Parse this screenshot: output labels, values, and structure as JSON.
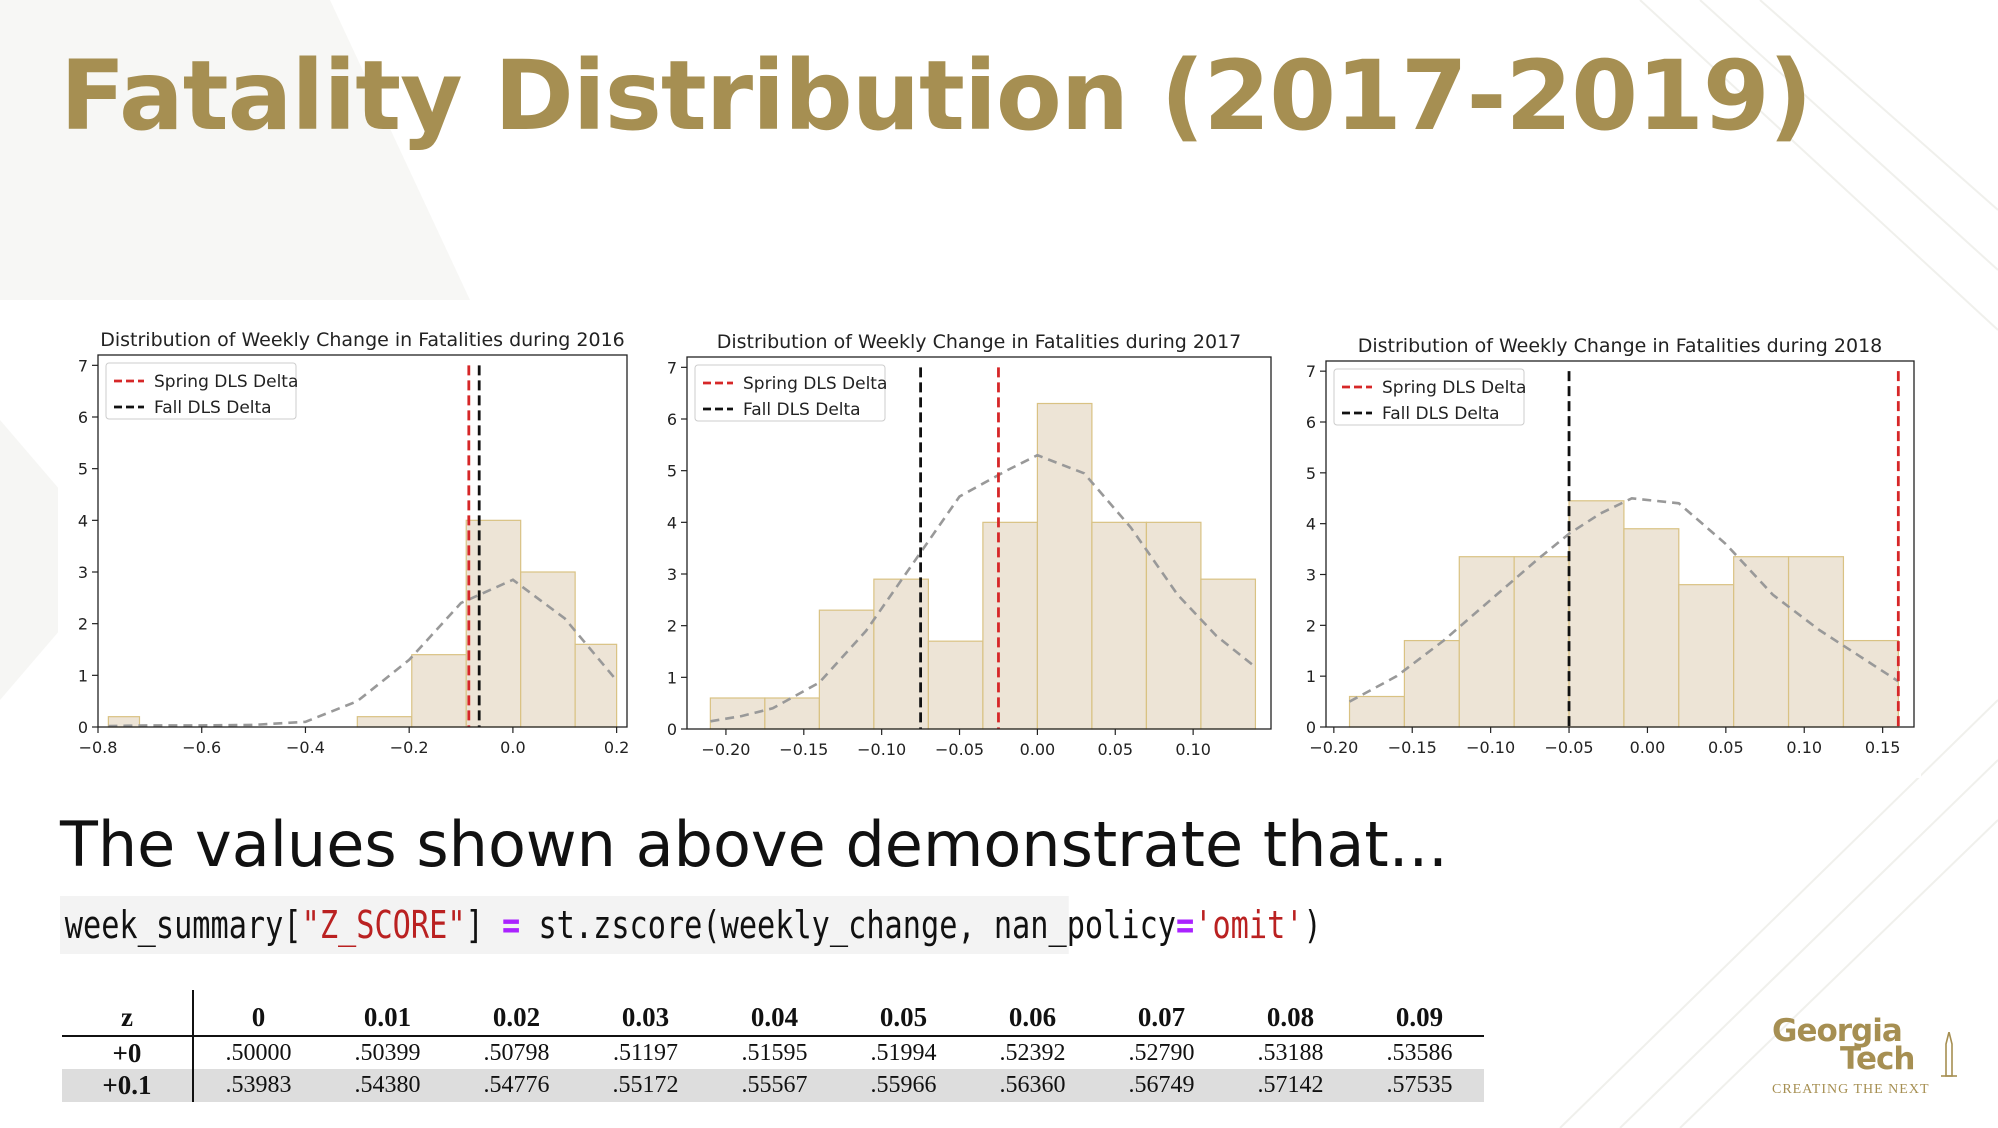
{
  "slide": {
    "title": "Fatality Distribution (2017-2019)",
    "body_text": "The values shown above demonstrate that...",
    "accent_color": "#a68f52"
  },
  "code": {
    "var": "week_summary",
    "br_open": "[",
    "key": "\"Z_SCORE\"",
    "br_close": "]",
    "eq": "=",
    "call": "st.zscore(weekly_change, nan_policy",
    "eq2": "=",
    "arg": "'omit'",
    "close": ")"
  },
  "chart_data": [
    {
      "type": "bar",
      "title": "Distribution of Weekly Change in Fatalities during 2016",
      "xlim": [
        -0.8,
        0.22
      ],
      "ylim": [
        0,
        7.2
      ],
      "xticks": [
        -0.8,
        -0.6,
        -0.4,
        -0.2,
        0.0,
        0.2
      ],
      "xtick_labels": [
        "−0.8",
        "−0.6",
        "−0.4",
        "−0.2",
        "0.0",
        "0.2"
      ],
      "yticks": [
        0,
        1,
        2,
        3,
        4,
        5,
        6,
        7
      ],
      "bins": [
        {
          "x0": -0.78,
          "x1": -0.72,
          "y": 0.2
        },
        {
          "x0": -0.72,
          "x1": -0.615,
          "y": 0.0
        },
        {
          "x0": -0.615,
          "x1": -0.51,
          "y": 0.0
        },
        {
          "x0": -0.51,
          "x1": -0.405,
          "y": 0.0
        },
        {
          "x0": -0.405,
          "x1": -0.3,
          "y": 0.0
        },
        {
          "x0": -0.3,
          "x1": -0.195,
          "y": 0.2
        },
        {
          "x0": -0.195,
          "x1": -0.09,
          "y": 1.4
        },
        {
          "x0": -0.09,
          "x1": 0.015,
          "y": 4.0
        },
        {
          "x0": 0.015,
          "x1": 0.12,
          "y": 3.0
        },
        {
          "x0": 0.12,
          "x1": 0.2,
          "y": 1.6
        }
      ],
      "kde": {
        "x": [
          -0.78,
          -0.7,
          -0.6,
          -0.5,
          -0.4,
          -0.3,
          -0.2,
          -0.1,
          0.0,
          0.1,
          0.2
        ],
        "y": [
          0.02,
          0.03,
          0.03,
          0.04,
          0.1,
          0.5,
          1.3,
          2.4,
          2.85,
          2.1,
          0.9
        ]
      },
      "vlines": [
        {
          "name": "Spring DLS Delta",
          "x": -0.085,
          "color": "#d62728"
        },
        {
          "name": "Fall DLS Delta",
          "x": -0.065,
          "color": "#111111"
        }
      ],
      "legend": [
        "Spring DLS Delta",
        "Fall DLS Delta"
      ],
      "legend_position": "upper-left",
      "bar_color": "#ede4d6",
      "bar_edge": "#d9c283",
      "kde_color": "#999999"
    },
    {
      "type": "bar",
      "title": "Distribution of Weekly Change in Fatalities during 2017",
      "xlim": [
        -0.225,
        0.15
      ],
      "ylim": [
        0,
        7.2
      ],
      "xticks": [
        -0.2,
        -0.15,
        -0.1,
        -0.05,
        0.0,
        0.05,
        0.1
      ],
      "xtick_labels": [
        "−0.20",
        "−0.15",
        "−0.10",
        "−0.05",
        "0.00",
        "0.05",
        "0.10"
      ],
      "yticks": [
        0,
        1,
        2,
        3,
        4,
        5,
        6,
        7
      ],
      "bins": [
        {
          "x0": -0.21,
          "x1": -0.175,
          "y": 0.6
        },
        {
          "x0": -0.175,
          "x1": -0.14,
          "y": 0.6
        },
        {
          "x0": -0.14,
          "x1": -0.105,
          "y": 2.3
        },
        {
          "x0": -0.105,
          "x1": -0.07,
          "y": 2.9
        },
        {
          "x0": -0.07,
          "x1": -0.035,
          "y": 1.7
        },
        {
          "x0": -0.035,
          "x1": 0.0,
          "y": 4.0
        },
        {
          "x0": 0.0,
          "x1": 0.035,
          "y": 6.3
        },
        {
          "x0": 0.035,
          "x1": 0.07,
          "y": 4.0
        },
        {
          "x0": 0.07,
          "x1": 0.105,
          "y": 4.0
        },
        {
          "x0": 0.105,
          "x1": 0.14,
          "y": 2.9
        }
      ],
      "kde": {
        "x": [
          -0.21,
          -0.19,
          -0.17,
          -0.14,
          -0.11,
          -0.08,
          -0.05,
          -0.02,
          0.0,
          0.03,
          0.06,
          0.09,
          0.115,
          0.14
        ],
        "y": [
          0.15,
          0.25,
          0.4,
          0.9,
          1.9,
          3.2,
          4.5,
          5.0,
          5.3,
          4.95,
          3.9,
          2.6,
          1.8,
          1.2
        ]
      },
      "vlines": [
        {
          "name": "Spring DLS Delta",
          "x": -0.025,
          "color": "#d62728"
        },
        {
          "name": "Fall DLS Delta",
          "x": -0.075,
          "color": "#111111"
        }
      ],
      "legend": [
        "Spring DLS Delta",
        "Fall DLS Delta"
      ],
      "legend_position": "upper-left",
      "bar_color": "#ede4d6",
      "bar_edge": "#d9c283",
      "kde_color": "#999999"
    },
    {
      "type": "bar",
      "title": "Distribution of Weekly Change in Fatalities during 2018",
      "xlim": [
        -0.205,
        0.17
      ],
      "ylim": [
        0,
        7.2
      ],
      "xticks": [
        -0.2,
        -0.15,
        -0.1,
        -0.05,
        0.0,
        0.05,
        0.1,
        0.15
      ],
      "xtick_labels": [
        "−0.20",
        "−0.15",
        "−0.10",
        "−0.05",
        "0.00",
        "0.05",
        "0.10",
        "0.15"
      ],
      "yticks": [
        0,
        1,
        2,
        3,
        4,
        5,
        6,
        7
      ],
      "bins": [
        {
          "x0": -0.19,
          "x1": -0.155,
          "y": 0.6
        },
        {
          "x0": -0.155,
          "x1": -0.12,
          "y": 1.7
        },
        {
          "x0": -0.12,
          "x1": -0.085,
          "y": 3.35
        },
        {
          "x0": -0.085,
          "x1": -0.05,
          "y": 3.35
        },
        {
          "x0": -0.05,
          "x1": -0.015,
          "y": 4.45
        },
        {
          "x0": -0.015,
          "x1": 0.02,
          "y": 3.9
        },
        {
          "x0": 0.02,
          "x1": 0.055,
          "y": 2.8
        },
        {
          "x0": 0.055,
          "x1": 0.09,
          "y": 3.35
        },
        {
          "x0": 0.09,
          "x1": 0.125,
          "y": 3.35
        },
        {
          "x0": 0.125,
          "x1": 0.16,
          "y": 1.7
        }
      ],
      "kde": {
        "x": [
          -0.19,
          -0.16,
          -0.13,
          -0.1,
          -0.07,
          -0.05,
          -0.03,
          -0.01,
          0.02,
          0.05,
          0.08,
          0.11,
          0.135,
          0.16
        ],
        "y": [
          0.5,
          1.0,
          1.7,
          2.5,
          3.3,
          3.8,
          4.2,
          4.5,
          4.4,
          3.6,
          2.6,
          1.9,
          1.4,
          0.9
        ]
      },
      "vlines": [
        {
          "name": "Spring DLS Delta",
          "x": 0.16,
          "color": "#d62728"
        },
        {
          "name": "Fall DLS Delta",
          "x": -0.05,
          "color": "#111111"
        }
      ],
      "legend": [
        "Spring DLS Delta",
        "Fall DLS Delta"
      ],
      "legend_position": "upper-left",
      "bar_color": "#ede4d6",
      "bar_edge": "#d9c283",
      "kde_color": "#999999"
    },
    {
      "type": "table",
      "columns": [
        "z",
        "0",
        "0.01",
        "0.02",
        "0.03",
        "0.04",
        "0.05",
        "0.06",
        "0.07",
        "0.08",
        "0.09"
      ],
      "rows": [
        {
          "label": "+0",
          "values": [
            ".50000",
            ".50399",
            ".50798",
            ".51197",
            ".51595",
            ".51994",
            ".52392",
            ".52790",
            ".53188",
            ".53586"
          ]
        },
        {
          "label": "+0.1",
          "values": [
            ".53983",
            ".54380",
            ".54776",
            ".55172",
            ".55567",
            ".55966",
            ".56360",
            ".56749",
            ".57142",
            ".57535"
          ]
        }
      ]
    }
  ],
  "logo": {
    "line1": "Georgia",
    "line2": "Tech",
    "tagline": "CREATING THE NEXT",
    "color": "#a68f52"
  }
}
